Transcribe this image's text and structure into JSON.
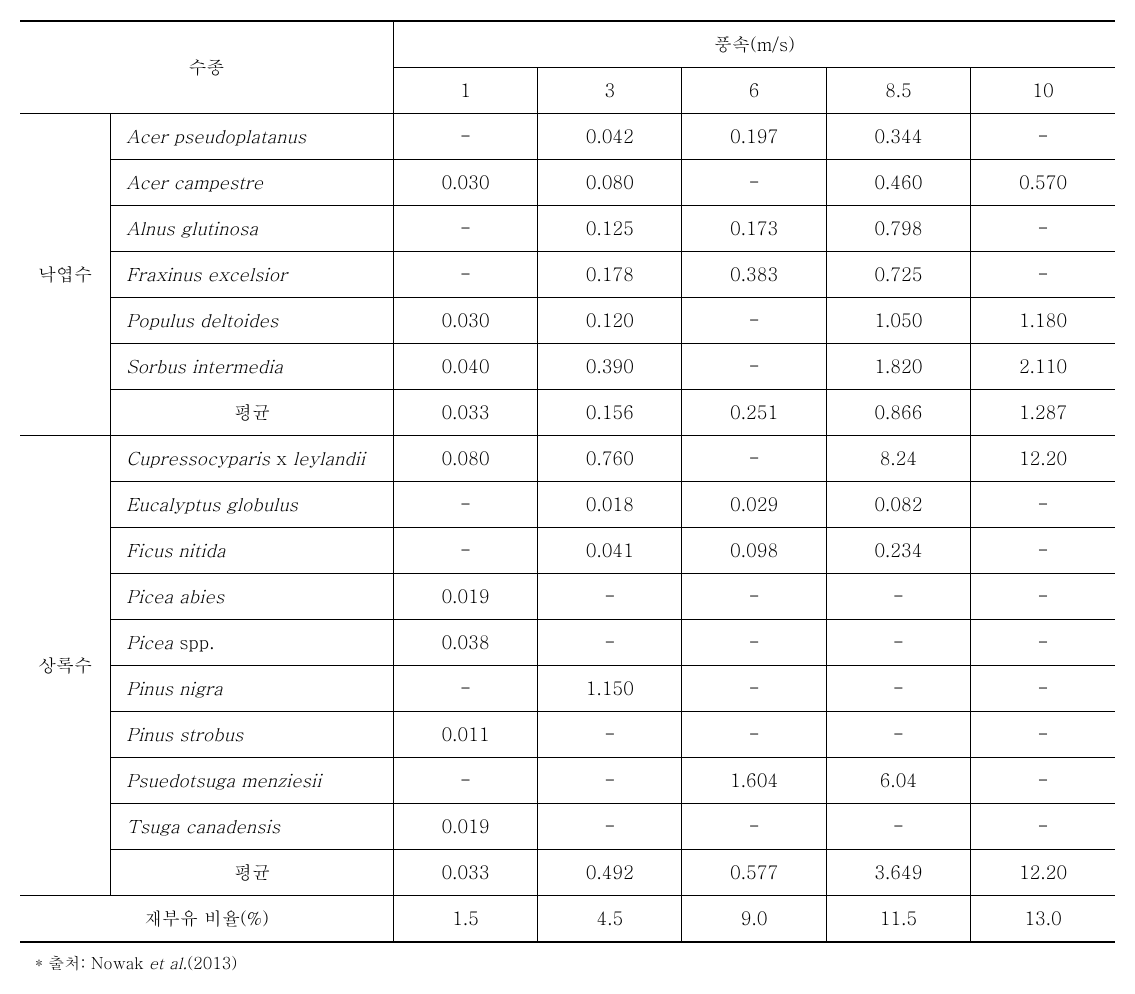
{
  "headers": {
    "species_label": "수종",
    "windspeed_label": "풍속(m/s)",
    "wind_1": "1",
    "wind_3": "3",
    "wind_6": "6",
    "wind_85": "8.5",
    "wind_10": "10"
  },
  "categories": {
    "deciduous": "낙엽수",
    "evergreen": "상록수"
  },
  "species": {
    "acer_pseudo": "Acer pseudoplatanus",
    "acer_camp": "Acer campestre",
    "alnus": "Alnus glutinosa",
    "fraxinus": "Fraxinus excelsior",
    "populus": "Populus deltoides",
    "sorbus": "Sorbus intermedia",
    "cupresso_pre": "Cupressocyparis",
    "cupresso_mid": " x ",
    "cupresso_post": "leylandii",
    "eucalyptus": "Eucalyptus globulus",
    "ficus": "Ficus nitida",
    "picea_abies": "Picea abies",
    "picea_spp_pre": "Picea",
    "picea_spp_post": " spp.",
    "pinus_nigra": "Pinus nigra",
    "pinus_strobus": "Pinus strobus",
    "pseudotsuga": "Psuedotsuga menziesii",
    "tsuga": "Tsuga canadensis"
  },
  "labels": {
    "average": "평균",
    "resuspension": "재부유 비율(%)"
  },
  "data": {
    "acer_pseudo": {
      "w1": "-",
      "w3": "0.042",
      "w6": "0.197",
      "w85": "0.344",
      "w10": "-"
    },
    "acer_camp": {
      "w1": "0.030",
      "w3": "0.080",
      "w6": "-",
      "w85": "0.460",
      "w10": "0.570"
    },
    "alnus": {
      "w1": "-",
      "w3": "0.125",
      "w6": "0.173",
      "w85": "0.798",
      "w10": "-"
    },
    "fraxinus": {
      "w1": "-",
      "w3": "0.178",
      "w6": "0.383",
      "w85": "0.725",
      "w10": "-"
    },
    "populus": {
      "w1": "0.030",
      "w3": "0.120",
      "w6": "-",
      "w85": "1.050",
      "w10": "1.180"
    },
    "sorbus": {
      "w1": "0.040",
      "w3": "0.390",
      "w6": "-",
      "w85": "1.820",
      "w10": "2.110"
    },
    "decid_avg": {
      "w1": "0.033",
      "w3": "0.156",
      "w6": "0.251",
      "w85": "0.866",
      "w10": "1.287"
    },
    "cupresso": {
      "w1": "0.080",
      "w3": "0.760",
      "w6": "-",
      "w85": "8.24",
      "w10": "12.20"
    },
    "eucalyptus": {
      "w1": "-",
      "w3": "0.018",
      "w6": "0.029",
      "w85": "0.082",
      "w10": "-"
    },
    "ficus": {
      "w1": "-",
      "w3": "0.041",
      "w6": "0.098",
      "w85": "0.234",
      "w10": "-"
    },
    "picea_abies": {
      "w1": "0.019",
      "w3": "-",
      "w6": "-",
      "w85": "-",
      "w10": "-"
    },
    "picea_spp": {
      "w1": "0.038",
      "w3": "-",
      "w6": "-",
      "w85": "-",
      "w10": "-"
    },
    "pinus_nigra": {
      "w1": "-",
      "w3": "1.150",
      "w6": "-",
      "w85": "-",
      "w10": "-"
    },
    "pinus_strobus": {
      "w1": "0.011",
      "w3": "-",
      "w6": "-",
      "w85": "-",
      "w10": "-"
    },
    "pseudotsuga": {
      "w1": "-",
      "w3": "-",
      "w6": "1.604",
      "w85": "6.04",
      "w10": "-"
    },
    "tsuga": {
      "w1": "0.019",
      "w3": "-",
      "w6": "-",
      "w85": "-",
      "w10": "-"
    },
    "everg_avg": {
      "w1": "0.033",
      "w3": "0.492",
      "w6": "0.577",
      "w85": "3.649",
      "w10": "12.20"
    },
    "resuspension": {
      "w1": "1.5",
      "w3": "4.5",
      "w6": "9.0",
      "w85": "11.5",
      "w10": "13.0"
    }
  },
  "source": {
    "prefix": "* 출처: Nowak ",
    "italic": "et al.",
    "suffix": "(2013)"
  }
}
